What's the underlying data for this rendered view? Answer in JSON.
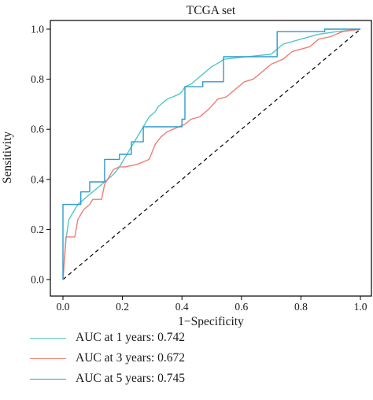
{
  "chart_data": {
    "type": "line",
    "title": "TCGA set",
    "xlabel": "1−Specificity",
    "ylabel": "Sensitivity",
    "xlim": [
      0,
      1
    ],
    "ylim": [
      0,
      1
    ],
    "x_ticks": [
      "0.0",
      "0.2",
      "0.4",
      "0.6",
      "0.8",
      "1.0"
    ],
    "y_ticks": [
      "0.0",
      "0.2",
      "0.4",
      "0.6",
      "0.8",
      "1.0"
    ],
    "grid": false,
    "legend_position": "bottom",
    "reference_line": {
      "style": "dashed",
      "color": "#000000",
      "from": [
        0,
        0
      ],
      "to": [
        1,
        1
      ]
    },
    "series": [
      {
        "name": "AUC at 1 years: 0.742",
        "color": "#4ec8c4",
        "points": [
          [
            0,
            0
          ],
          [
            0.005,
            0.08
          ],
          [
            0.01,
            0.16
          ],
          [
            0.015,
            0.2
          ],
          [
            0.02,
            0.24
          ],
          [
            0.03,
            0.26
          ],
          [
            0.04,
            0.28
          ],
          [
            0.05,
            0.3
          ],
          [
            0.07,
            0.32
          ],
          [
            0.09,
            0.34
          ],
          [
            0.11,
            0.36
          ],
          [
            0.12,
            0.37
          ],
          [
            0.14,
            0.39
          ],
          [
            0.15,
            0.4
          ],
          [
            0.17,
            0.42
          ],
          [
            0.19,
            0.45
          ],
          [
            0.2,
            0.47
          ],
          [
            0.21,
            0.49
          ],
          [
            0.22,
            0.51
          ],
          [
            0.23,
            0.53
          ],
          [
            0.24,
            0.55
          ],
          [
            0.25,
            0.57
          ],
          [
            0.26,
            0.59
          ],
          [
            0.27,
            0.61
          ],
          [
            0.28,
            0.63
          ],
          [
            0.29,
            0.65
          ],
          [
            0.31,
            0.67
          ],
          [
            0.32,
            0.69
          ],
          [
            0.34,
            0.71
          ],
          [
            0.35,
            0.72
          ],
          [
            0.37,
            0.73
          ],
          [
            0.39,
            0.74
          ],
          [
            0.4,
            0.75
          ],
          [
            0.41,
            0.77
          ],
          [
            0.43,
            0.78
          ],
          [
            0.44,
            0.79
          ],
          [
            0.45,
            0.8
          ],
          [
            0.47,
            0.82
          ],
          [
            0.48,
            0.83
          ],
          [
            0.5,
            0.85
          ],
          [
            0.53,
            0.87
          ],
          [
            0.54,
            0.88
          ],
          [
            0.7,
            0.9
          ],
          [
            0.74,
            0.94
          ],
          [
            0.8,
            0.96
          ],
          [
            0.86,
            0.98
          ],
          [
            0.92,
            0.99
          ],
          [
            1.0,
            1.0
          ]
        ]
      },
      {
        "name": "AUC at 3 years: 0.672",
        "color": "#f07d75",
        "points": [
          [
            0,
            0
          ],
          [
            0.01,
            0.17
          ],
          [
            0.04,
            0.17
          ],
          [
            0.05,
            0.24
          ],
          [
            0.07,
            0.28
          ],
          [
            0.09,
            0.3
          ],
          [
            0.1,
            0.32
          ],
          [
            0.13,
            0.32
          ],
          [
            0.14,
            0.38
          ],
          [
            0.16,
            0.42
          ],
          [
            0.17,
            0.44
          ],
          [
            0.19,
            0.45
          ],
          [
            0.21,
            0.45
          ],
          [
            0.25,
            0.46
          ],
          [
            0.29,
            0.48
          ],
          [
            0.31,
            0.54
          ],
          [
            0.33,
            0.57
          ],
          [
            0.35,
            0.59
          ],
          [
            0.37,
            0.6
          ],
          [
            0.39,
            0.61
          ],
          [
            0.41,
            0.62
          ],
          [
            0.43,
            0.64
          ],
          [
            0.46,
            0.65
          ],
          [
            0.49,
            0.68
          ],
          [
            0.52,
            0.72
          ],
          [
            0.55,
            0.73
          ],
          [
            0.58,
            0.76
          ],
          [
            0.61,
            0.79
          ],
          [
            0.64,
            0.8
          ],
          [
            0.67,
            0.83
          ],
          [
            0.7,
            0.86
          ],
          [
            0.74,
            0.88
          ],
          [
            0.77,
            0.91
          ],
          [
            0.8,
            0.92
          ],
          [
            0.83,
            0.93
          ],
          [
            0.86,
            0.96
          ],
          [
            0.9,
            0.97
          ],
          [
            0.94,
            0.99
          ],
          [
            1.0,
            1.0
          ]
        ]
      },
      {
        "name": "AUC at 5 years: 0.745",
        "color": "#2e9ad0",
        "points": [
          [
            0,
            0
          ],
          [
            0,
            0.3
          ],
          [
            0.06,
            0.3
          ],
          [
            0.06,
            0.35
          ],
          [
            0.09,
            0.35
          ],
          [
            0.09,
            0.39
          ],
          [
            0.14,
            0.39
          ],
          [
            0.14,
            0.48
          ],
          [
            0.19,
            0.48
          ],
          [
            0.19,
            0.5
          ],
          [
            0.23,
            0.5
          ],
          [
            0.23,
            0.55
          ],
          [
            0.27,
            0.55
          ],
          [
            0.27,
            0.61
          ],
          [
            0.4,
            0.61
          ],
          [
            0.4,
            0.64
          ],
          [
            0.41,
            0.64
          ],
          [
            0.41,
            0.77
          ],
          [
            0.47,
            0.77
          ],
          [
            0.47,
            0.79
          ],
          [
            0.54,
            0.79
          ],
          [
            0.54,
            0.89
          ],
          [
            0.72,
            0.89
          ],
          [
            0.72,
            0.99
          ],
          [
            0.88,
            0.99
          ],
          [
            0.88,
            1.0
          ],
          [
            1.0,
            1.0
          ]
        ]
      }
    ]
  }
}
